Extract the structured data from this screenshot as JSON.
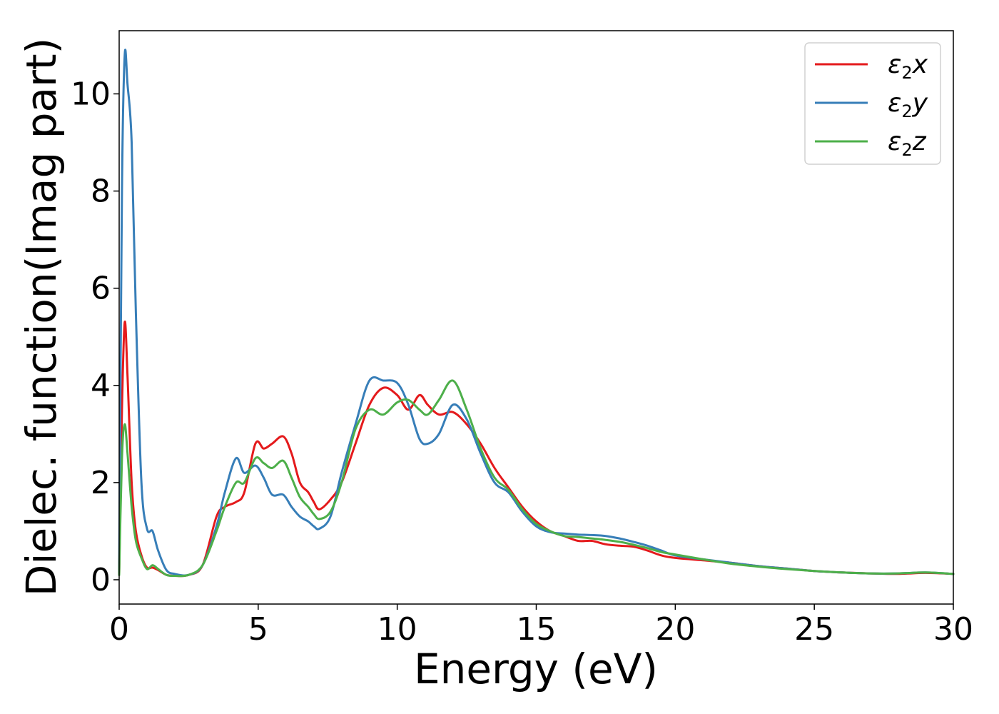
{
  "chart_data": {
    "type": "line",
    "xlabel": "Energy (eV)",
    "ylabel": "Dielec. function(Imag part)",
    "xlim": [
      0,
      30
    ],
    "ylim": [
      -0.5,
      11.3
    ],
    "xticks": [
      0,
      5,
      10,
      15,
      20,
      25,
      30
    ],
    "yticks": [
      0,
      2,
      4,
      6,
      8,
      10
    ],
    "grid": false,
    "legend_position": "top-right",
    "series": [
      {
        "name": "ε2x",
        "legend_base": "ε",
        "legend_sub": "2",
        "legend_suffix": "x",
        "color": "#e41a1c",
        "x": [
          0,
          0.1,
          0.2,
          0.3,
          0.45,
          0.6,
          0.8,
          1.0,
          1.2,
          1.4,
          1.7,
          2.0,
          2.5,
          3.0,
          3.5,
          3.8,
          4.2,
          4.5,
          4.9,
          5.2,
          5.5,
          5.9,
          6.2,
          6.5,
          6.8,
          7.0,
          7.2,
          7.6,
          8.0,
          8.5,
          9.0,
          9.5,
          10.0,
          10.4,
          10.8,
          11.1,
          11.5,
          12.0,
          12.5,
          13.0,
          13.5,
          14.0,
          14.5,
          15.0,
          15.5,
          16.0,
          16.5,
          17.0,
          17.5,
          18.0,
          18.5,
          19.0,
          19.5,
          20.0,
          21.0,
          22.0,
          23.0,
          24.0,
          25.0,
          26.0,
          27.0,
          28.0,
          29.0,
          30.0
        ],
        "y": [
          0.1,
          3.5,
          5.3,
          4.2,
          2.0,
          1.0,
          0.5,
          0.25,
          0.25,
          0.2,
          0.1,
          0.08,
          0.1,
          0.3,
          1.3,
          1.5,
          1.6,
          1.8,
          2.8,
          2.7,
          2.8,
          2.95,
          2.6,
          2.0,
          1.8,
          1.6,
          1.45,
          1.65,
          2.0,
          2.8,
          3.6,
          3.95,
          3.8,
          3.5,
          3.8,
          3.6,
          3.4,
          3.45,
          3.2,
          2.8,
          2.3,
          1.9,
          1.5,
          1.2,
          1.0,
          0.9,
          0.8,
          0.8,
          0.73,
          0.7,
          0.68,
          0.6,
          0.5,
          0.45,
          0.4,
          0.35,
          0.28,
          0.23,
          0.18,
          0.15,
          0.13,
          0.12,
          0.14,
          0.12
        ]
      },
      {
        "name": "ε2y",
        "legend_base": "ε",
        "legend_sub": "2",
        "legend_suffix": "y",
        "color": "#377eb8",
        "x": [
          0,
          0.1,
          0.2,
          0.3,
          0.45,
          0.6,
          0.8,
          1.0,
          1.2,
          1.4,
          1.7,
          2.0,
          2.5,
          3.0,
          3.5,
          3.8,
          4.2,
          4.5,
          4.9,
          5.2,
          5.5,
          5.9,
          6.2,
          6.5,
          6.8,
          7.0,
          7.2,
          7.6,
          8.0,
          8.5,
          9.0,
          9.5,
          10.0,
          10.4,
          10.8,
          11.1,
          11.5,
          12.0,
          12.5,
          13.0,
          13.5,
          14.0,
          14.5,
          15.0,
          15.5,
          16.0,
          16.5,
          17.0,
          17.5,
          18.0,
          18.5,
          19.0,
          19.5,
          20.0,
          21.0,
          22.0,
          23.0,
          24.0,
          25.0,
          26.0,
          27.0,
          28.0,
          29.0,
          30.0
        ],
        "y": [
          0.1,
          8.0,
          10.8,
          10.2,
          9.0,
          5.5,
          2.0,
          1.05,
          1.0,
          0.6,
          0.2,
          0.12,
          0.1,
          0.3,
          1.1,
          1.8,
          2.5,
          2.2,
          2.35,
          2.1,
          1.75,
          1.75,
          1.5,
          1.3,
          1.2,
          1.1,
          1.05,
          1.3,
          2.2,
          3.2,
          4.1,
          4.1,
          4.05,
          3.6,
          2.9,
          2.8,
          3.0,
          3.6,
          3.3,
          2.6,
          2.0,
          1.8,
          1.4,
          1.1,
          0.98,
          0.95,
          0.93,
          0.92,
          0.9,
          0.85,
          0.78,
          0.7,
          0.6,
          0.5,
          0.42,
          0.35,
          0.28,
          0.23,
          0.18,
          0.15,
          0.13,
          0.13,
          0.15,
          0.12
        ]
      },
      {
        "name": "ε2z",
        "legend_base": "ε",
        "legend_sub": "2",
        "legend_suffix": "z",
        "color": "#4daf4a",
        "x": [
          0,
          0.1,
          0.2,
          0.3,
          0.45,
          0.6,
          0.8,
          1.0,
          1.2,
          1.4,
          1.7,
          2.0,
          2.5,
          3.0,
          3.5,
          3.8,
          4.2,
          4.5,
          4.9,
          5.2,
          5.5,
          5.9,
          6.2,
          6.5,
          6.8,
          7.0,
          7.2,
          7.6,
          8.0,
          8.5,
          9.0,
          9.5,
          10.0,
          10.4,
          10.8,
          11.1,
          11.5,
          12.0,
          12.5,
          13.0,
          13.5,
          14.0,
          14.5,
          15.0,
          15.5,
          16.0,
          16.5,
          17.0,
          17.5,
          18.0,
          18.5,
          19.0,
          19.5,
          20.0,
          21.0,
          22.0,
          23.0,
          24.0,
          25.0,
          26.0,
          27.0,
          28.0,
          29.0,
          30.0
        ],
        "y": [
          0.1,
          2.5,
          3.2,
          2.6,
          1.5,
          0.8,
          0.45,
          0.22,
          0.3,
          0.22,
          0.1,
          0.08,
          0.1,
          0.3,
          1.0,
          1.5,
          2.0,
          2.0,
          2.5,
          2.4,
          2.3,
          2.45,
          2.1,
          1.7,
          1.5,
          1.35,
          1.25,
          1.4,
          2.0,
          3.1,
          3.5,
          3.4,
          3.65,
          3.7,
          3.5,
          3.4,
          3.7,
          4.1,
          3.5,
          2.7,
          2.1,
          1.85,
          1.45,
          1.15,
          1.0,
          0.9,
          0.88,
          0.85,
          0.82,
          0.78,
          0.72,
          0.65,
          0.57,
          0.52,
          0.42,
          0.33,
          0.27,
          0.22,
          0.18,
          0.15,
          0.13,
          0.13,
          0.15,
          0.12
        ]
      }
    ]
  }
}
